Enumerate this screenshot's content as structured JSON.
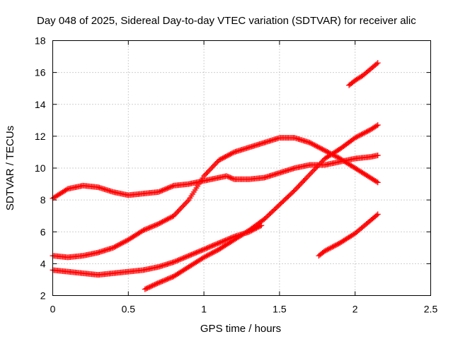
{
  "chart_data": {
    "type": "scatter",
    "title": "Day 048 of 2025, Sidereal Day-to-day VTEC variation (SDTVAR) for receiver alic",
    "xlabel": "GPS time / hours",
    "ylabel": "SDTVAR / TECUs",
    "xlim": [
      0,
      2.5
    ],
    "ylim": [
      2,
      18
    ],
    "xticks": [
      0,
      0.5,
      1,
      1.5,
      2,
      2.5
    ],
    "xtick_labels": [
      "0",
      "0.5",
      "1",
      "1.5",
      "2",
      "2.5"
    ],
    "yticks": [
      2,
      4,
      6,
      8,
      10,
      12,
      14,
      16,
      18
    ],
    "ytick_labels": [
      "2",
      "4",
      "6",
      "8",
      "10",
      "12",
      "14",
      "16",
      "18"
    ],
    "grid": true,
    "marker": "+",
    "marker_color": "#ff0000",
    "series": [
      {
        "x": [
          0,
          0.1,
          0.2,
          0.3,
          0.4,
          0.5,
          0.6,
          0.7,
          0.8,
          0.9,
          1.0,
          1.1,
          1.15,
          1.2,
          1.3,
          1.4,
          1.5,
          1.6,
          1.7,
          1.8,
          1.9,
          2.0,
          2.1,
          2.15
        ],
        "y": [
          8.1,
          8.7,
          8.9,
          8.8,
          8.5,
          8.3,
          8.4,
          8.5,
          8.9,
          9.0,
          9.2,
          9.4,
          9.5,
          9.3,
          9.3,
          9.4,
          9.7,
          10.0,
          10.2,
          10.2,
          10.4,
          10.6,
          10.7,
          10.8
        ]
      },
      {
        "x": [
          0,
          0.1,
          0.2,
          0.3,
          0.4,
          0.5,
          0.6,
          0.7,
          0.8,
          0.9,
          1.0,
          1.1,
          1.2,
          1.3,
          1.4,
          1.5,
          1.6,
          1.7,
          1.8,
          1.9,
          2.0,
          2.1,
          2.15
        ],
        "y": [
          4.5,
          4.4,
          4.5,
          4.7,
          5.0,
          5.5,
          6.1,
          6.5,
          7.0,
          8.0,
          9.5,
          10.5,
          11.0,
          11.3,
          11.6,
          11.9,
          11.9,
          11.6,
          11.1,
          10.6,
          10.0,
          9.4,
          9.1
        ]
      },
      {
        "x": [
          0,
          0.1,
          0.2,
          0.3,
          0.4,
          0.5,
          0.6,
          0.7,
          0.8,
          0.9,
          1.0,
          1.1,
          1.2,
          1.3,
          1.38
        ],
        "y": [
          3.6,
          3.5,
          3.4,
          3.3,
          3.4,
          3.5,
          3.6,
          3.8,
          4.1,
          4.5,
          4.9,
          5.3,
          5.7,
          6.0,
          6.4
        ]
      },
      {
        "x": [
          0.61,
          0.7,
          0.8,
          0.9,
          1.0,
          1.1,
          1.2,
          1.3,
          1.4,
          1.5,
          1.6,
          1.7,
          1.8,
          1.9,
          2.0,
          2.1,
          2.15
        ],
        "y": [
          2.4,
          2.8,
          3.2,
          3.8,
          4.4,
          4.9,
          5.5,
          6.1,
          6.8,
          7.7,
          8.6,
          9.6,
          10.6,
          11.2,
          11.9,
          12.4,
          12.7
        ]
      },
      {
        "x": [
          1.76,
          1.8,
          1.9,
          2.0,
          2.1,
          2.15
        ],
        "y": [
          4.5,
          4.8,
          5.3,
          5.9,
          6.7,
          7.1
        ]
      },
      {
        "x": [
          1.96,
          2.0,
          2.05,
          2.1,
          2.15
        ],
        "y": [
          15.2,
          15.5,
          15.8,
          16.2,
          16.6
        ]
      }
    ]
  }
}
